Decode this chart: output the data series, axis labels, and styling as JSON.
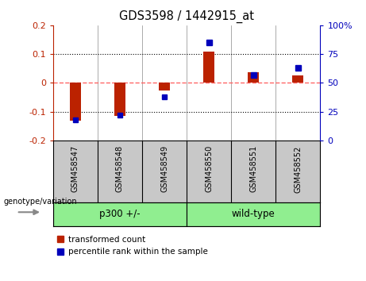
{
  "title": "GDS3598 / 1442915_at",
  "categories": [
    "GSM458547",
    "GSM458548",
    "GSM458549",
    "GSM458550",
    "GSM458551",
    "GSM458552"
  ],
  "red_values": [
    -0.13,
    -0.115,
    -0.025,
    0.11,
    0.038,
    0.025
  ],
  "blue_pct": [
    18,
    22,
    38,
    85,
    57,
    63
  ],
  "group_label": "genotype/variation",
  "groups": [
    {
      "label": "p300 +/-",
      "start": 0,
      "end": 2
    },
    {
      "label": "wild-type",
      "start": 3,
      "end": 5
    }
  ],
  "ylim_left": [
    -0.2,
    0.2
  ],
  "ylim_right": [
    0,
    100
  ],
  "yticks_left": [
    -0.2,
    -0.1,
    0.0,
    0.1,
    0.2
  ],
  "yticks_right": [
    0,
    25,
    50,
    75,
    100
  ],
  "red_color": "#BB2200",
  "blue_color": "#0000BB",
  "zero_line_color": "#FF6666",
  "bg_label": "#C8C8C8",
  "bg_group": "#90EE90",
  "red_bar_width": 0.25,
  "blue_sq_size": 0.12
}
